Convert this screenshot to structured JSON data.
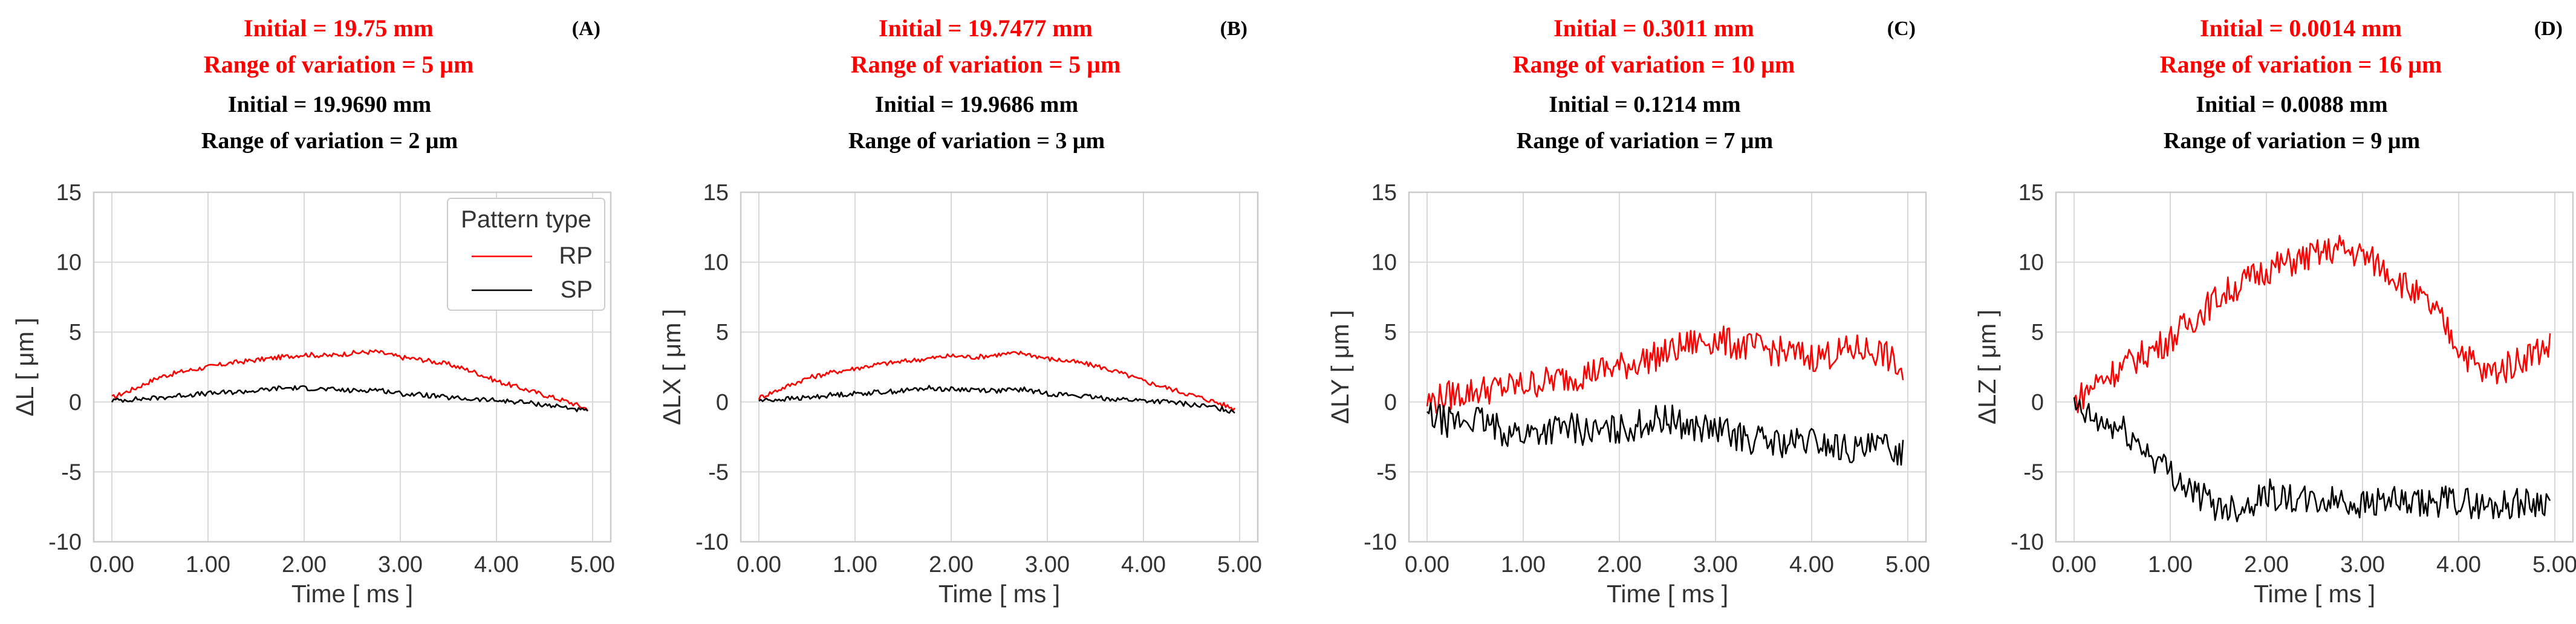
{
  "chart_data": [
    {
      "type": "line",
      "panel": "(A)",
      "header": {
        "rp_initial": "Initial = 19.75 mm",
        "rp_range": "Range of variation = 5 μm",
        "sp_initial": "Initial = 19.9690 mm",
        "sp_range": "Range of variation = 2 μm"
      },
      "xlabel": "Time [ ms ]",
      "ylabel": "ΔL [ μm ]",
      "xlim": [
        0,
        5
      ],
      "ylim": [
        -10,
        15
      ],
      "xticks": [
        "0.00",
        "1.00",
        "2.00",
        "3.00",
        "4.00",
        "5.00"
      ],
      "yticks": [
        "15",
        "10",
        "5",
        "0",
        "-5",
        "-10"
      ],
      "legend": {
        "title": "Pattern type",
        "entries": [
          "RP",
          "SP"
        ],
        "position": "upper-right"
      },
      "series": [
        {
          "name": "RP",
          "color": "#ff0000",
          "x": [
            0.0,
            0.25,
            0.5,
            0.75,
            1.0,
            1.25,
            1.5,
            1.75,
            2.0,
            2.25,
            2.5,
            2.75,
            3.0,
            3.25,
            3.5,
            3.75,
            4.0,
            4.25,
            4.5,
            4.75,
            4.95
          ],
          "y": [
            0.3,
            1.0,
            1.8,
            2.2,
            2.5,
            2.8,
            3.0,
            3.2,
            3.4,
            3.3,
            3.5,
            3.6,
            3.2,
            3.0,
            2.7,
            2.2,
            1.5,
            1.0,
            0.5,
            0.0,
            -0.5
          ]
        },
        {
          "name": "SP",
          "color": "#000000",
          "x": [
            0.0,
            0.25,
            0.5,
            0.75,
            1.0,
            1.25,
            1.5,
            1.75,
            2.0,
            2.25,
            2.5,
            2.75,
            3.0,
            3.25,
            3.5,
            3.75,
            4.0,
            4.25,
            4.5,
            4.75,
            4.95
          ],
          "y": [
            0.1,
            0.2,
            0.3,
            0.5,
            0.6,
            0.7,
            0.8,
            1.0,
            1.0,
            0.9,
            0.8,
            0.9,
            0.6,
            0.5,
            0.3,
            0.2,
            0.1,
            0.0,
            -0.2,
            -0.4,
            -0.7
          ]
        }
      ]
    },
    {
      "type": "line",
      "panel": "(B)",
      "header": {
        "rp_initial": "Initial = 19.7477 mm",
        "rp_range": "Range of variation = 5 μm",
        "sp_initial": "Initial = 19.9686 mm",
        "sp_range": "Range of variation = 3 μm"
      },
      "xlabel": "Time [ ms ]",
      "ylabel": "ΔLX [ μm ]",
      "xlim": [
        0,
        5
      ],
      "ylim": [
        -10,
        15
      ],
      "xticks": [
        "0.00",
        "1.00",
        "2.00",
        "3.00",
        "4.00",
        "5.00"
      ],
      "yticks": [
        "15",
        "10",
        "5",
        "0",
        "-5",
        "-10"
      ],
      "series": [
        {
          "name": "RP",
          "color": "#ff0000",
          "x": [
            0.0,
            0.25,
            0.5,
            0.75,
            1.0,
            1.25,
            1.5,
            1.75,
            2.0,
            2.25,
            2.5,
            2.75,
            3.0,
            3.25,
            3.5,
            3.75,
            4.0,
            4.25,
            4.5,
            4.75,
            4.95
          ],
          "y": [
            0.3,
            1.0,
            1.7,
            2.1,
            2.4,
            2.7,
            2.9,
            3.1,
            3.3,
            3.2,
            3.4,
            3.5,
            3.1,
            2.9,
            2.6,
            2.1,
            1.5,
            1.0,
            0.5,
            0.0,
            -0.5
          ]
        },
        {
          "name": "SP",
          "color": "#000000",
          "x": [
            0.0,
            0.25,
            0.5,
            0.75,
            1.0,
            1.25,
            1.5,
            1.75,
            2.0,
            2.25,
            2.5,
            2.75,
            3.0,
            3.25,
            3.5,
            3.75,
            4.0,
            4.25,
            4.5,
            4.75,
            4.95
          ],
          "y": [
            0.1,
            0.2,
            0.3,
            0.5,
            0.6,
            0.7,
            0.8,
            1.0,
            0.9,
            0.9,
            0.8,
            0.9,
            0.6,
            0.5,
            0.3,
            0.2,
            0.1,
            0.0,
            -0.2,
            -0.4,
            -0.7
          ]
        }
      ]
    },
    {
      "type": "line",
      "panel": "(C)",
      "header": {
        "rp_initial": "Initial = 0.3011 mm",
        "rp_range": "Range of variation = 10 μm",
        "sp_initial": "Initial = 0.1214 mm",
        "sp_range": "Range of variation = 7 μm"
      },
      "xlabel": "Time [ ms ]",
      "ylabel": "ΔLY [ μm ]",
      "xlim": [
        0,
        5
      ],
      "ylim": [
        -10,
        15
      ],
      "xticks": [
        "0.00",
        "1.00",
        "2.00",
        "3.00",
        "4.00",
        "5.00"
      ],
      "yticks": [
        "15",
        "10",
        "5",
        "0",
        "-5",
        "-10"
      ],
      "series": [
        {
          "name": "RP",
          "color": "#ff0000",
          "x": [
            0.0,
            0.25,
            0.5,
            0.75,
            1.0,
            1.25,
            1.5,
            1.75,
            2.0,
            2.25,
            2.5,
            2.75,
            3.0,
            3.25,
            3.5,
            3.75,
            4.0,
            4.25,
            4.5,
            4.75,
            4.95
          ],
          "y": [
            0.0,
            0.5,
            0.8,
            1.0,
            1.2,
            1.5,
            1.8,
            2.2,
            2.5,
            3.0,
            3.5,
            4.2,
            4.5,
            4.0,
            3.8,
            3.5,
            3.2,
            3.5,
            3.8,
            3.5,
            2.0
          ]
        },
        {
          "name": "SP",
          "color": "#000000",
          "x": [
            0.0,
            0.25,
            0.5,
            0.75,
            1.0,
            1.25,
            1.5,
            1.75,
            2.0,
            2.25,
            2.5,
            2.75,
            3.0,
            3.25,
            3.5,
            3.75,
            4.0,
            4.25,
            4.5,
            4.75,
            4.95
          ],
          "y": [
            -1.0,
            -1.5,
            -1.2,
            -2.0,
            -2.3,
            -2.0,
            -1.8,
            -2.2,
            -2.0,
            -1.5,
            -1.2,
            -1.8,
            -2.0,
            -2.5,
            -2.8,
            -3.0,
            -2.8,
            -3.2,
            -3.5,
            -3.2,
            -3.5
          ]
        }
      ]
    },
    {
      "type": "line",
      "panel": "(D)",
      "header": {
        "rp_initial": "Initial = 0.0014 mm",
        "rp_range": "Range of variation = 16 μm",
        "sp_initial": "Initial = 0.0088 mm",
        "sp_range": "Range of variation = 9 μm"
      },
      "xlabel": "Time [ ms ]",
      "ylabel": "ΔLZ [ μm ]",
      "xlim": [
        0,
        5
      ],
      "ylim": [
        -10,
        15
      ],
      "xticks": [
        "0.00",
        "1.00",
        "2.00",
        "3.00",
        "4.00",
        "5.00"
      ],
      "yticks": [
        "15",
        "10",
        "5",
        "0",
        "-5",
        "-10"
      ],
      "series": [
        {
          "name": "RP",
          "color": "#ff0000",
          "x": [
            0.0,
            0.25,
            0.5,
            0.75,
            1.0,
            1.25,
            1.5,
            1.75,
            2.0,
            2.25,
            2.5,
            2.75,
            3.0,
            3.25,
            3.5,
            3.75,
            4.0,
            4.25,
            4.5,
            4.75,
            4.95
          ],
          "y": [
            0.0,
            1.5,
            2.5,
            3.5,
            4.5,
            6.0,
            7.5,
            8.5,
            9.5,
            10.0,
            10.5,
            11.0,
            10.5,
            9.5,
            8.0,
            6.5,
            4.0,
            2.0,
            2.5,
            3.5,
            4.0
          ]
        },
        {
          "name": "SP",
          "color": "#000000",
          "x": [
            0.0,
            0.25,
            0.5,
            0.75,
            1.0,
            1.25,
            1.5,
            1.75,
            2.0,
            2.25,
            2.5,
            2.75,
            3.0,
            3.25,
            3.5,
            3.75,
            4.0,
            4.25,
            4.5,
            4.75,
            4.95
          ],
          "y": [
            -0.5,
            -1.5,
            -2.0,
            -3.5,
            -5.0,
            -6.5,
            -7.5,
            -7.5,
            -6.5,
            -7.0,
            -7.2,
            -7.0,
            -7.3,
            -7.0,
            -7.5,
            -7.2,
            -7.0,
            -7.5,
            -7.3,
            -7.2,
            -7.0
          ]
        }
      ]
    }
  ]
}
